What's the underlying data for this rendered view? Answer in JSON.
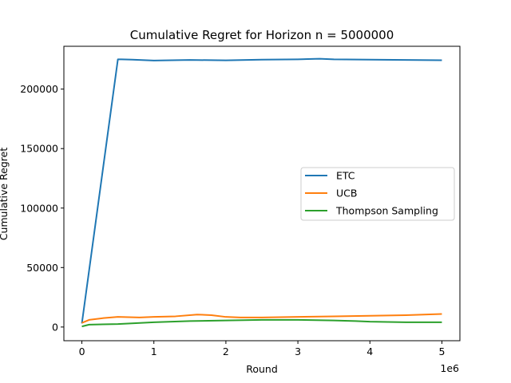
{
  "chart_data": {
    "type": "line",
    "title": "Cumulative Regret for Horizon n = 5000000",
    "xlabel": "Round",
    "ylabel": "Cumulative Regret",
    "x_offset_text": "1e6",
    "xlim": [
      -0.25,
      5.25
    ],
    "ylim": [
      -11500,
      236000
    ],
    "x_ticks": [
      0,
      1,
      2,
      3,
      4,
      5
    ],
    "x_tick_labels": [
      "0",
      "1",
      "2",
      "3",
      "4",
      "5"
    ],
    "y_ticks": [
      0,
      50000,
      100000,
      150000,
      200000
    ],
    "y_tick_labels": [
      "0",
      "50000",
      "100000",
      "150000",
      "200000"
    ],
    "grid": false,
    "legend_position": "center-right",
    "series": [
      {
        "name": "ETC",
        "color": "#1f77b4",
        "points": [
          [
            0,
            3000
          ],
          [
            0.5,
            225000
          ],
          [
            0.55,
            225000
          ],
          [
            0.7,
            224800
          ],
          [
            1.0,
            224000
          ],
          [
            1.5,
            224500
          ],
          [
            2.0,
            224200
          ],
          [
            2.5,
            224800
          ],
          [
            3.0,
            225000
          ],
          [
            3.3,
            225500
          ],
          [
            3.5,
            225000
          ],
          [
            4.0,
            224800
          ],
          [
            4.5,
            224500
          ],
          [
            5.0,
            224300
          ]
        ]
      },
      {
        "name": "UCB",
        "color": "#ff7f0e",
        "points": [
          [
            0,
            3500
          ],
          [
            0.1,
            6000
          ],
          [
            0.3,
            7500
          ],
          [
            0.5,
            8500
          ],
          [
            0.8,
            8000
          ],
          [
            1.0,
            8500
          ],
          [
            1.3,
            9000
          ],
          [
            1.6,
            10500
          ],
          [
            1.8,
            10000
          ],
          [
            2.0,
            8500
          ],
          [
            2.2,
            8000
          ],
          [
            2.5,
            8000
          ],
          [
            3.0,
            8500
          ],
          [
            3.5,
            9000
          ],
          [
            4.0,
            9500
          ],
          [
            4.5,
            10000
          ],
          [
            5.0,
            11000
          ]
        ]
      },
      {
        "name": "Thompson Sampling",
        "color": "#2ca02c",
        "points": [
          [
            0,
            500
          ],
          [
            0.1,
            2000
          ],
          [
            0.5,
            2500
          ],
          [
            1.0,
            4000
          ],
          [
            1.5,
            5000
          ],
          [
            2.0,
            5500
          ],
          [
            2.5,
            6000
          ],
          [
            3.0,
            6000
          ],
          [
            3.5,
            5500
          ],
          [
            3.8,
            5000
          ],
          [
            4.0,
            4500
          ],
          [
            4.5,
            4000
          ],
          [
            5.0,
            4000
          ]
        ]
      }
    ]
  }
}
